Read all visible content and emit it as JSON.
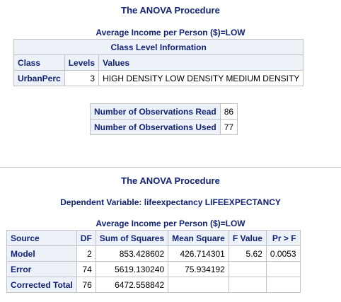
{
  "section1": {
    "title": "The ANOVA Procedure",
    "byline": "Average Income per Person ($)=LOW",
    "class_table": {
      "caption": "Class Level Information",
      "headers": [
        "Class",
        "Levels",
        "Values"
      ],
      "rows": [
        {
          "class": "UrbanPerc",
          "levels": "3",
          "values": "HIGH DENSITY LOW DENSITY MEDIUM DENSITY"
        }
      ]
    },
    "obs_table": {
      "rows": [
        {
          "label": "Number of Observations Read",
          "value": "86"
        },
        {
          "label": "Number of Observations Used",
          "value": "77"
        }
      ]
    }
  },
  "section2": {
    "title": "The ANOVA Procedure",
    "dependent": "Dependent Variable: lifeexpectancy LIFEEXPECTANCY",
    "byline": "Average Income per Person ($)=LOW",
    "anova_table": {
      "headers": [
        "Source",
        "DF",
        "Sum of Squares",
        "Mean Square",
        "F Value",
        "Pr > F"
      ],
      "rows": [
        {
          "source": "Model",
          "df": "2",
          "ss": "853.428602",
          "ms": "426.714301",
          "f": "5.62",
          "p": "0.0053"
        },
        {
          "source": "Error",
          "df": "74",
          "ss": "5619.130240",
          "ms": "75.934192",
          "f": "",
          "p": ""
        },
        {
          "source": "Corrected Total",
          "df": "76",
          "ss": "6472.558842",
          "ms": "",
          "f": "",
          "p": ""
        }
      ]
    }
  }
}
